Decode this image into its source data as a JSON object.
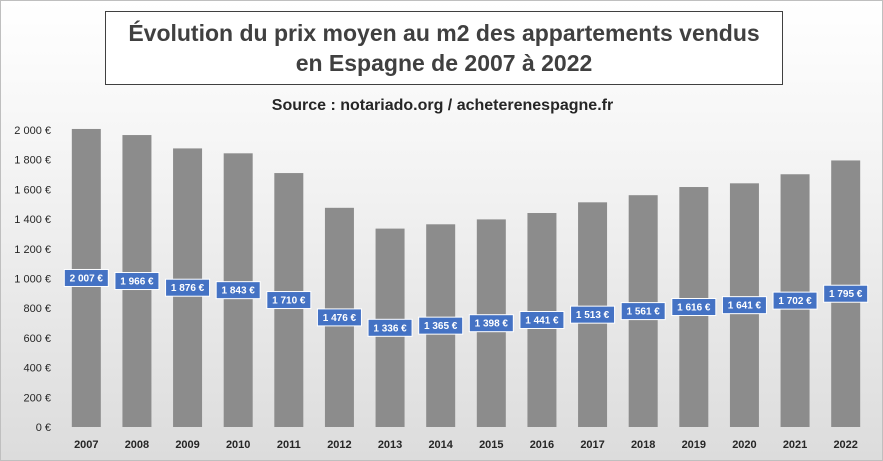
{
  "chart_data": {
    "type": "bar",
    "title_lines": [
      "Évolution du prix moyen au m2 des appartements vendus",
      "en Espagne de 2007 à 2022"
    ],
    "subtitle": "Source : notariado.org / acheterenespagne.fr",
    "categories": [
      "2007",
      "2008",
      "2009",
      "2010",
      "2011",
      "2012",
      "2013",
      "2014",
      "2015",
      "2016",
      "2017",
      "2018",
      "2019",
      "2020",
      "2021",
      "2022"
    ],
    "values": [
      2007,
      1966,
      1876,
      1843,
      1710,
      1476,
      1336,
      1365,
      1398,
      1441,
      1513,
      1561,
      1616,
      1641,
      1702,
      1795
    ],
    "data_labels": [
      "2 007 €",
      "1 966 €",
      "1 876 €",
      "1 843 €",
      "1 710 €",
      "1 476 €",
      "1 336 €",
      "1 365 €",
      "1 398 €",
      "1 441 €",
      "1 513 €",
      "1 561 €",
      "1 616 €",
      "1 641 €",
      "1 702 €",
      "1 795 €"
    ],
    "y_ticks": [
      0,
      200,
      400,
      600,
      800,
      1000,
      1200,
      1400,
      1600,
      1800,
      2000
    ],
    "y_tick_labels": [
      "0 €",
      "200 €",
      "400 €",
      "600 €",
      "800 €",
      "1 000 €",
      "1 200 €",
      "1 400 €",
      "1 600 €",
      "1 800 €",
      "2 000 €"
    ],
    "ylim": [
      0,
      2000
    ],
    "grid": false,
    "legend": "none",
    "colors": {
      "bar": "#8c8c8c",
      "label_bg": "#4472c4",
      "label_border": "#ffffff",
      "label_text": "#ffffff",
      "axis_text": "#262626"
    }
  }
}
